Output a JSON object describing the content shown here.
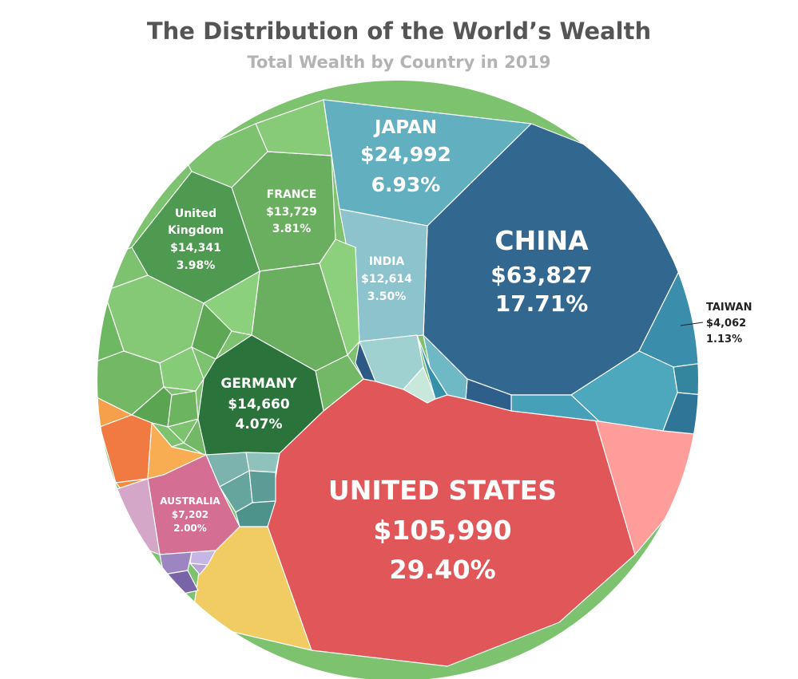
{
  "title": "The Distribution of the World’s Wealth",
  "subtitle": "Total Wealth by Country in 2019",
  "chart_data": {
    "type": "voronoi-treemap",
    "title": "The Distribution of the World’s Wealth",
    "subtitle": "Total Wealth by Country in 2019",
    "value_unit": "Total wealth (billions USD), share of world total",
    "labeled_cells": [
      {
        "name": "UNITED STATES",
        "value": "$105,990",
        "share": "29.40%",
        "color": "#e15759"
      },
      {
        "name": "CHINA",
        "value": "$63,827",
        "share": "17.71%",
        "color": "#326790"
      },
      {
        "name": "JAPAN",
        "value": "$24,992",
        "share": "6.93%",
        "color": "#62afc0"
      },
      {
        "name": "GERMANY",
        "value": "$14,660",
        "share": "4.07%",
        "color": "#2a743b"
      },
      {
        "name": "United Kingdom",
        "value": "$14,341",
        "share": "3.98%",
        "color": "#4e9a50"
      },
      {
        "name": "FRANCE",
        "value": "$13,729",
        "share": "3.81%",
        "color": "#6aaf5f"
      },
      {
        "name": "INDIA",
        "value": "$12,614",
        "share": "3.50%",
        "color": "#8cc3cc"
      },
      {
        "name": "AUSTRALIA",
        "value": "$7,202",
        "share": "2.00%",
        "color": "#d46e93"
      },
      {
        "name": "TAIWAN",
        "value": "$4,062",
        "share": "1.13%",
        "color": "#3a8eab"
      }
    ]
  }
}
